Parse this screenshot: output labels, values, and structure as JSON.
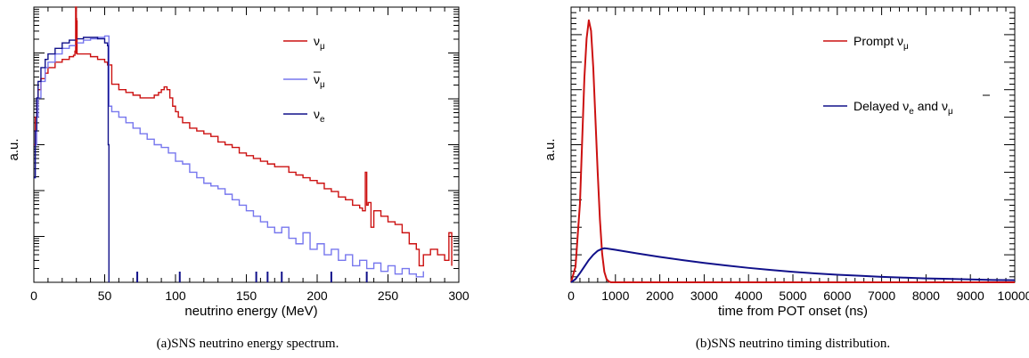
{
  "chart_data": [
    {
      "id": "energy",
      "type": "line",
      "title": "",
      "caption": "(a)SNS neutrino energy spectrum.",
      "xlabel": "neutrino energy (MeV)",
      "ylabel": "a.u.",
      "xlim": [
        0,
        300
      ],
      "ylog": true,
      "xticks": [
        0,
        50,
        100,
        150,
        200,
        250,
        300
      ],
      "legend_position": "top-right",
      "series": [
        {
          "name": "νμ",
          "legend_main": "ν",
          "legend_sub": "μ",
          "legend_bar": false,
          "color": "#cc1111",
          "step": true,
          "x": [
            0,
            1,
            2,
            3,
            5,
            8,
            10,
            15,
            20,
            25,
            28,
            29,
            29.5,
            30,
            30.5,
            31,
            35,
            40,
            45,
            50,
            52,
            55,
            60,
            65,
            70,
            75,
            80,
            85,
            88,
            90,
            92,
            94,
            96,
            98,
            100,
            102,
            105,
            110,
            115,
            120,
            125,
            130,
            135,
            140,
            145,
            150,
            155,
            160,
            165,
            170,
            175,
            180,
            185,
            190,
            195,
            200,
            205,
            210,
            215,
            220,
            225,
            230,
            232,
            234,
            235,
            236,
            238,
            240,
            245,
            250,
            255,
            260,
            265,
            270,
            272,
            275,
            280,
            285,
            290,
            293,
            295
          ],
          "y": [
            0.5,
            0.4,
            0.35,
            0.3,
            0.26,
            0.24,
            0.22,
            0.2,
            0.19,
            0.18,
            0.175,
            0.16,
            0.0,
            0.05,
            0.17,
            0.17,
            0.17,
            0.18,
            0.19,
            0.2,
            0.21,
            0.28,
            0.3,
            0.31,
            0.32,
            0.33,
            0.33,
            0.32,
            0.31,
            0.3,
            0.29,
            0.3,
            0.33,
            0.36,
            0.38,
            0.4,
            0.42,
            0.44,
            0.45,
            0.46,
            0.47,
            0.49,
            0.5,
            0.51,
            0.53,
            0.54,
            0.55,
            0.56,
            0.57,
            0.58,
            0.58,
            0.6,
            0.61,
            0.62,
            0.63,
            0.64,
            0.66,
            0.67,
            0.69,
            0.7,
            0.72,
            0.73,
            0.74,
            0.6,
            0.72,
            0.71,
            0.8,
            0.74,
            0.76,
            0.78,
            0.79,
            0.82,
            0.86,
            0.88,
            0.94,
            0.9,
            0.88,
            0.9,
            0.92,
            0.82,
            0.94
          ]
        },
        {
          "name": "ν̄μ",
          "legend_main": "ν",
          "legend_sub": "μ",
          "legend_bar": true,
          "color": "#7777ee",
          "step": true,
          "x": [
            0,
            1,
            2,
            3,
            5,
            8,
            10,
            15,
            20,
            25,
            30,
            35,
            40,
            45,
            50,
            52,
            53,
            55,
            60,
            65,
            70,
            75,
            80,
            85,
            90,
            95,
            100,
            105,
            110,
            115,
            120,
            125,
            130,
            135,
            140,
            145,
            150,
            155,
            160,
            165,
            170,
            175,
            180,
            185,
            190,
            195,
            200,
            205,
            210,
            215,
            220,
            225,
            230,
            235,
            240,
            245,
            250,
            255,
            260,
            265,
            270,
            275
          ],
          "y": [
            0.62,
            0.5,
            0.4,
            0.33,
            0.27,
            0.22,
            0.2,
            0.17,
            0.15,
            0.14,
            0.13,
            0.12,
            0.115,
            0.11,
            0.105,
            0.105,
            0.36,
            0.38,
            0.4,
            0.42,
            0.44,
            0.46,
            0.48,
            0.5,
            0.51,
            0.53,
            0.56,
            0.57,
            0.6,
            0.62,
            0.64,
            0.65,
            0.66,
            0.68,
            0.7,
            0.72,
            0.74,
            0.76,
            0.78,
            0.8,
            0.82,
            0.8,
            0.84,
            0.86,
            0.82,
            0.88,
            0.86,
            0.9,
            0.88,
            0.92,
            0.9,
            0.94,
            0.92,
            0.95,
            0.93,
            0.96,
            0.94,
            0.97,
            0.95,
            0.97,
            0.98,
            0.96
          ]
        },
        {
          "name": "νe",
          "legend_main": "ν",
          "legend_sub": "e",
          "legend_bar": false,
          "color": "#11118a",
          "step": true,
          "x": [
            0,
            1,
            2,
            3,
            5,
            8,
            10,
            15,
            20,
            25,
            30,
            35,
            40,
            45,
            50,
            52,
            52.5,
            53
          ],
          "y": [
            0.62,
            0.45,
            0.33,
            0.27,
            0.22,
            0.19,
            0.17,
            0.15,
            0.13,
            0.12,
            0.115,
            0.11,
            0.11,
            0.115,
            0.13,
            0.14,
            0.5,
            1.0
          ]
        }
      ],
      "prompt_line": {
        "x": 30,
        "color": "#cc1111"
      }
    },
    {
      "id": "timing",
      "type": "line",
      "title": "",
      "caption": "(b)SNS neutrino timing distribution.",
      "xlabel": "time from POT onset (ns)",
      "ylabel": "a.u.",
      "xlim": [
        0,
        10000
      ],
      "ylim": [
        0,
        1.05
      ],
      "xticks": [
        0,
        1000,
        2000,
        3000,
        4000,
        5000,
        6000,
        7000,
        8000,
        9000,
        10000
      ],
      "legend_position": "top-right",
      "series": [
        {
          "name": "Prompt νμ",
          "legend_main": "Prompt ν",
          "legend_sub": "μ",
          "color": "#cc1111",
          "x": [
            0,
            100,
            200,
            300,
            350,
            400,
            450,
            500,
            550,
            600,
            650,
            700,
            750,
            800,
            850,
            900,
            10000
          ],
          "y": [
            0.0,
            0.06,
            0.3,
            0.78,
            0.93,
            1.0,
            0.96,
            0.82,
            0.62,
            0.42,
            0.24,
            0.11,
            0.04,
            0.012,
            0.003,
            0.0,
            0.0
          ]
        },
        {
          "name": "Delayed νe and ν̄μ",
          "legend_main": "Delayed ν",
          "legend_sub": "e",
          "legend_rest": " and ",
          "legend_main2": "ν",
          "legend_sub2": "μ",
          "color": "#11118a",
          "x": [
            0,
            100,
            200,
            300,
            400,
            500,
            600,
            700,
            750,
            800,
            1000,
            1500,
            2000,
            2500,
            3000,
            3500,
            4000,
            4500,
            5000,
            5500,
            6000,
            6500,
            7000,
            7500,
            8000,
            8500,
            9000,
            9500,
            10000
          ],
          "y": [
            0.0,
            0.012,
            0.035,
            0.06,
            0.085,
            0.105,
            0.12,
            0.128,
            0.13,
            0.129,
            0.124,
            0.11,
            0.097,
            0.085,
            0.074,
            0.064,
            0.055,
            0.047,
            0.04,
            0.034,
            0.029,
            0.025,
            0.021,
            0.018,
            0.015,
            0.013,
            0.011,
            0.009,
            0.008
          ]
        }
      ]
    }
  ]
}
